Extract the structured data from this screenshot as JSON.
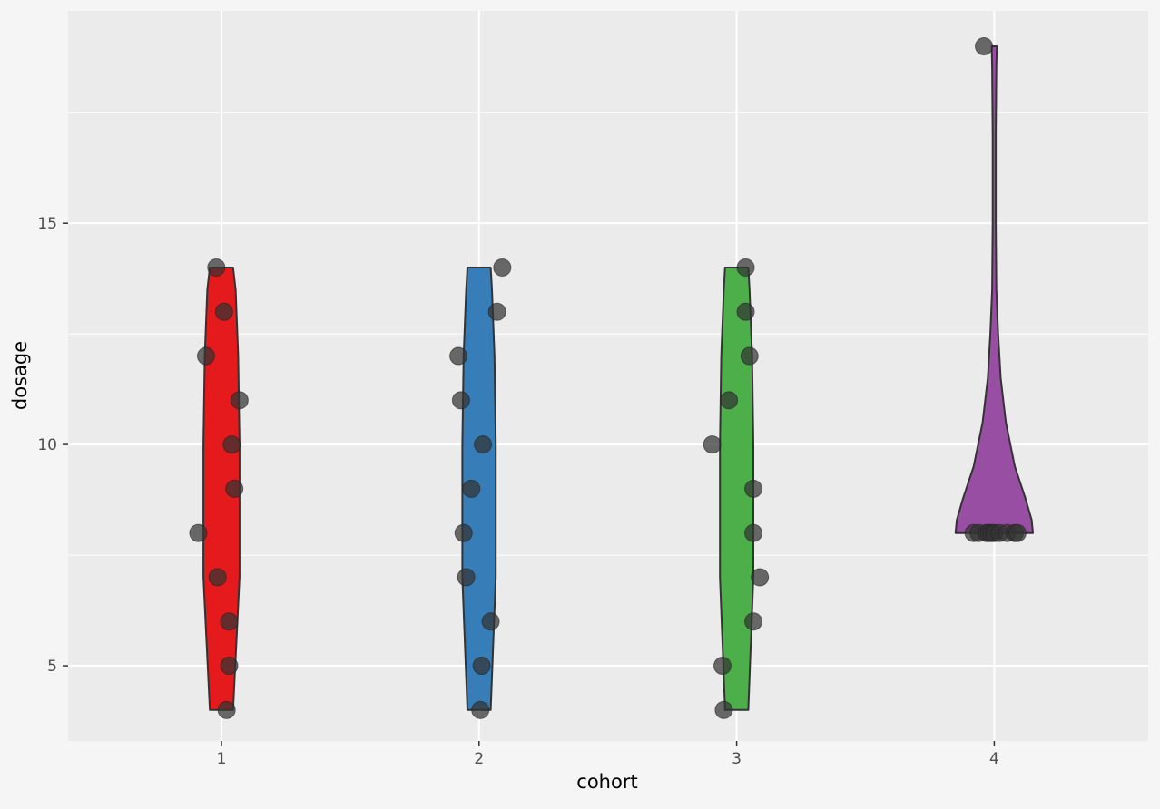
{
  "chart_data": {
    "type": "violin",
    "title": "",
    "xlabel": "cohort",
    "ylabel": "dosage",
    "categories": [
      "1",
      "2",
      "3",
      "4"
    ],
    "yticks": [
      5,
      10,
      15
    ],
    "ylim": [
      3.3,
      19.8
    ],
    "grid": true,
    "legend": "none",
    "colors": {
      "1": "#e41a1c",
      "2": "#377eb8",
      "3": "#4daf4a",
      "4": "#984ea3",
      "points": "#333333",
      "outline": "#333333",
      "panel": "#ebebeb",
      "grid": "#ffffff",
      "background": "#f5f5f5"
    },
    "groups": [
      {
        "cohort": "1",
        "points": [
          {
            "dx": -0.02,
            "y": 14
          },
          {
            "dx": 0.01,
            "y": 13
          },
          {
            "dx": -0.06,
            "y": 12
          },
          {
            "dx": 0.07,
            "y": 11
          },
          {
            "dx": 0.04,
            "y": 10
          },
          {
            "dx": 0.05,
            "y": 9
          },
          {
            "dx": -0.09,
            "y": 8
          },
          {
            "dx": -0.015,
            "y": 7
          },
          {
            "dx": 0.03,
            "y": 6
          },
          {
            "dx": 0.03,
            "y": 5
          },
          {
            "dx": 0.02,
            "y": 4
          }
        ],
        "violin": [
          [
            4,
            0.045
          ],
          [
            7,
            0.07
          ],
          [
            10,
            0.07
          ],
          [
            12,
            0.065
          ],
          [
            13.5,
            0.055
          ],
          [
            14,
            0.045
          ]
        ]
      },
      {
        "cohort": "2",
        "points": [
          {
            "dx": 0.09,
            "y": 14
          },
          {
            "dx": 0.07,
            "y": 13
          },
          {
            "dx": -0.08,
            "y": 12
          },
          {
            "dx": -0.07,
            "y": 11
          },
          {
            "dx": 0.015,
            "y": 10
          },
          {
            "dx": -0.03,
            "y": 9
          },
          {
            "dx": -0.06,
            "y": 8
          },
          {
            "dx": -0.05,
            "y": 7
          },
          {
            "dx": 0.045,
            "y": 6
          },
          {
            "dx": 0.01,
            "y": 5
          },
          {
            "dx": 0.005,
            "y": 4
          }
        ],
        "violin": [
          [
            4,
            0.045
          ],
          [
            7,
            0.065
          ],
          [
            10,
            0.065
          ],
          [
            12,
            0.06
          ],
          [
            13.5,
            0.05
          ],
          [
            14,
            0.045
          ]
        ]
      },
      {
        "cohort": "3",
        "points": [
          {
            "dx": 0.035,
            "y": 14
          },
          {
            "dx": 0.035,
            "y": 13
          },
          {
            "dx": 0.05,
            "y": 12
          },
          {
            "dx": -0.03,
            "y": 11
          },
          {
            "dx": -0.095,
            "y": 10
          },
          {
            "dx": 0.065,
            "y": 9
          },
          {
            "dx": 0.065,
            "y": 8
          },
          {
            "dx": 0.09,
            "y": 7
          },
          {
            "dx": 0.065,
            "y": 6
          },
          {
            "dx": -0.055,
            "y": 5
          },
          {
            "dx": -0.05,
            "y": 4
          }
        ],
        "violin": [
          [
            4,
            0.045
          ],
          [
            7,
            0.065
          ],
          [
            10,
            0.065
          ],
          [
            12,
            0.06
          ],
          [
            13.5,
            0.05
          ],
          [
            14,
            0.045
          ]
        ]
      },
      {
        "cohort": "4",
        "points": [
          {
            "dx": -0.04,
            "y": 19
          },
          {
            "dx": -0.08,
            "y": 8
          },
          {
            "dx": -0.06,
            "y": 8
          },
          {
            "dx": -0.03,
            "y": 8
          },
          {
            "dx": -0.02,
            "y": 8
          },
          {
            "dx": -0.01,
            "y": 8
          },
          {
            "dx": 0.0,
            "y": 8
          },
          {
            "dx": 0.02,
            "y": 8
          },
          {
            "dx": 0.05,
            "y": 8
          },
          {
            "dx": 0.08,
            "y": 8
          },
          {
            "dx": 0.09,
            "y": 8
          }
        ],
        "violin": [
          [
            8,
            0.15
          ],
          [
            8.3,
            0.145
          ],
          [
            8.8,
            0.12
          ],
          [
            9.5,
            0.08
          ],
          [
            10.5,
            0.045
          ],
          [
            11.5,
            0.025
          ],
          [
            12.5,
            0.015
          ],
          [
            13.5,
            0.008
          ],
          [
            15,
            0.006
          ],
          [
            17,
            0.006
          ],
          [
            18.5,
            0.008
          ],
          [
            19,
            0.01
          ]
        ]
      }
    ]
  }
}
